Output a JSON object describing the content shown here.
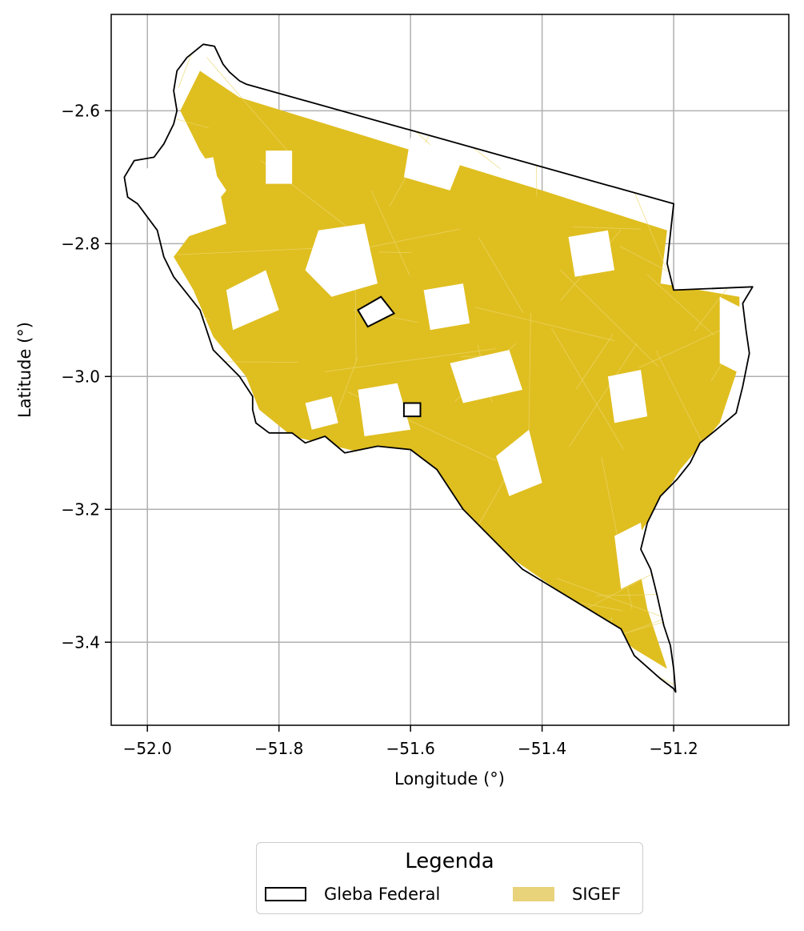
{
  "map": {
    "xlabel": "Longitude (°)",
    "ylabel": "Latitude (°)",
    "xlim": [
      -52.055,
      -51.025
    ],
    "ylim": [
      -3.525,
      -2.455
    ],
    "x_ticks": [
      -52.0,
      -51.8,
      -51.6,
      -51.4,
      -51.2
    ],
    "x_tick_labels": [
      "−52.0",
      "−51.8",
      "−51.6",
      "−51.4",
      "−51.2"
    ],
    "y_ticks": [
      -2.6,
      -2.8,
      -3.0,
      -3.2,
      -3.4
    ],
    "y_tick_labels": [
      "−2.6",
      "−2.8",
      "−3.0",
      "−3.2",
      "−3.4"
    ],
    "grid": true,
    "fill_color": "#dfbe20",
    "outline_color": "#000000",
    "boundary_outline": [
      [
        -51.915,
        -2.5
      ],
      [
        -51.898,
        -2.503
      ],
      [
        -51.885,
        -2.53
      ],
      [
        -51.875,
        -2.542
      ],
      [
        -51.86,
        -2.555
      ],
      [
        -51.85,
        -2.56
      ],
      [
        -51.2,
        -2.74
      ],
      [
        -51.21,
        -2.83
      ],
      [
        -51.2,
        -2.87
      ],
      [
        -51.08,
        -2.865
      ],
      [
        -51.095,
        -2.89
      ],
      [
        -51.09,
        -2.93
      ],
      [
        -51.085,
        -2.965
      ],
      [
        -51.095,
        -3.015
      ],
      [
        -51.105,
        -3.055
      ],
      [
        -51.135,
        -3.08
      ],
      [
        -51.16,
        -3.1
      ],
      [
        -51.175,
        -3.13
      ],
      [
        -51.195,
        -3.155
      ],
      [
        -51.22,
        -3.18
      ],
      [
        -51.24,
        -3.22
      ],
      [
        -51.25,
        -3.26
      ],
      [
        -51.235,
        -3.29
      ],
      [
        -51.225,
        -3.33
      ],
      [
        -51.215,
        -3.375
      ],
      [
        -51.205,
        -3.405
      ],
      [
        -51.2,
        -3.44
      ],
      [
        -51.197,
        -3.475
      ],
      [
        -51.2,
        -3.47
      ],
      [
        -51.22,
        -3.455
      ],
      [
        -51.26,
        -3.42
      ],
      [
        -51.28,
        -3.38
      ],
      [
        -51.33,
        -3.35
      ],
      [
        -51.38,
        -3.32
      ],
      [
        -51.43,
        -3.29
      ],
      [
        -51.48,
        -3.24
      ],
      [
        -51.52,
        -3.2
      ],
      [
        -51.56,
        -3.14
      ],
      [
        -51.6,
        -3.11
      ],
      [
        -51.65,
        -3.105
      ],
      [
        -51.7,
        -3.115
      ],
      [
        -51.73,
        -3.09
      ],
      [
        -51.76,
        -3.1
      ],
      [
        -51.78,
        -3.085
      ],
      [
        -51.815,
        -3.085
      ],
      [
        -51.835,
        -3.07
      ],
      [
        -51.84,
        -3.05
      ],
      [
        -51.84,
        -3.03
      ],
      [
        -51.86,
        -3.0
      ],
      [
        -51.9,
        -2.96
      ],
      [
        -51.92,
        -2.9
      ],
      [
        -51.96,
        -2.85
      ],
      [
        -51.975,
        -2.82
      ],
      [
        -51.985,
        -2.78
      ],
      [
        -52.015,
        -2.74
      ],
      [
        -52.03,
        -2.73
      ],
      [
        -52.035,
        -2.7
      ],
      [
        -52.02,
        -2.675
      ],
      [
        -51.99,
        -2.67
      ],
      [
        -51.975,
        -2.65
      ],
      [
        -51.96,
        -2.62
      ],
      [
        -51.955,
        -2.6
      ],
      [
        -51.96,
        -2.57
      ],
      [
        -51.955,
        -2.54
      ],
      [
        -51.94,
        -2.52
      ]
    ],
    "sigef_core": [
      [
        -51.92,
        -2.54
      ],
      [
        -51.86,
        -2.58
      ],
      [
        -51.4,
        -2.72
      ],
      [
        -51.21,
        -2.78
      ],
      [
        -51.22,
        -2.86
      ],
      [
        -51.1,
        -2.88
      ],
      [
        -51.1,
        -2.98
      ],
      [
        -51.13,
        -3.07
      ],
      [
        -51.19,
        -3.14
      ],
      [
        -51.26,
        -3.25
      ],
      [
        -51.24,
        -3.35
      ],
      [
        -51.21,
        -3.44
      ],
      [
        -51.26,
        -3.41
      ],
      [
        -51.35,
        -3.34
      ],
      [
        -51.48,
        -3.25
      ],
      [
        -51.56,
        -3.15
      ],
      [
        -51.65,
        -3.12
      ],
      [
        -51.78,
        -3.09
      ],
      [
        -51.83,
        -3.05
      ],
      [
        -51.85,
        -3.0
      ],
      [
        -51.9,
        -2.94
      ],
      [
        -51.93,
        -2.87
      ],
      [
        -51.96,
        -2.82
      ],
      [
        -51.93,
        -2.78
      ],
      [
        -51.88,
        -2.72
      ],
      [
        -51.92,
        -2.66
      ],
      [
        -51.95,
        -2.6
      ]
    ],
    "gaps": [
      [
        [
          -52.02,
          -2.69
        ],
        [
          -51.9,
          -2.67
        ],
        [
          -51.88,
          -2.77
        ],
        [
          -51.97,
          -2.8
        ],
        [
          -52.02,
          -2.74
        ]
      ],
      [
        [
          -51.74,
          -2.78
        ],
        [
          -51.67,
          -2.77
        ],
        [
          -51.65,
          -2.86
        ],
        [
          -51.72,
          -2.88
        ],
        [
          -51.76,
          -2.84
        ]
      ],
      [
        [
          -51.6,
          -2.64
        ],
        [
          -51.52,
          -2.67
        ],
        [
          -51.54,
          -2.72
        ],
        [
          -51.61,
          -2.7
        ]
      ],
      [
        [
          -51.88,
          -2.87
        ],
        [
          -51.82,
          -2.84
        ],
        [
          -51.8,
          -2.9
        ],
        [
          -51.87,
          -2.93
        ]
      ],
      [
        [
          -51.13,
          -2.88
        ],
        [
          -51.09,
          -2.9
        ],
        [
          -51.09,
          -3.0
        ],
        [
          -51.13,
          -2.98
        ]
      ],
      [
        [
          -51.68,
          -3.02
        ],
        [
          -51.62,
          -3.01
        ],
        [
          -51.6,
          -3.08
        ],
        [
          -51.67,
          -3.09
        ]
      ],
      [
        [
          -51.54,
          -2.98
        ],
        [
          -51.45,
          -2.96
        ],
        [
          -51.43,
          -3.02
        ],
        [
          -51.52,
          -3.04
        ]
      ],
      [
        [
          -51.47,
          -3.12
        ],
        [
          -51.42,
          -3.08
        ],
        [
          -51.4,
          -3.16
        ],
        [
          -51.45,
          -3.18
        ]
      ],
      [
        [
          -51.3,
          -3.0
        ],
        [
          -51.25,
          -2.99
        ],
        [
          -51.24,
          -3.06
        ],
        [
          -51.29,
          -3.07
        ]
      ],
      [
        [
          -51.58,
          -2.87
        ],
        [
          -51.52,
          -2.86
        ],
        [
          -51.51,
          -2.92
        ],
        [
          -51.57,
          -2.93
        ]
      ],
      [
        [
          -51.36,
          -2.79
        ],
        [
          -51.3,
          -2.78
        ],
        [
          -51.29,
          -2.84
        ],
        [
          -51.35,
          -2.85
        ]
      ],
      [
        [
          -51.76,
          -3.04
        ],
        [
          -51.72,
          -3.03
        ],
        [
          -51.71,
          -3.07
        ],
        [
          -51.75,
          -3.08
        ]
      ],
      [
        [
          -51.29,
          -3.24
        ],
        [
          -51.25,
          -3.22
        ],
        [
          -51.24,
          -3.3
        ],
        [
          -51.28,
          -3.32
        ]
      ],
      [
        [
          -51.82,
          -2.66
        ],
        [
          -51.78,
          -2.66
        ],
        [
          -51.78,
          -2.71
        ],
        [
          -51.82,
          -2.71
        ]
      ]
    ],
    "glebas": [
      [
        [
          -51.68,
          -2.9
        ],
        [
          -51.645,
          -2.88
        ],
        [
          -51.625,
          -2.905
        ],
        [
          -51.665,
          -2.925
        ]
      ],
      [
        [
          -51.61,
          -3.04
        ],
        [
          -51.585,
          -3.04
        ],
        [
          -51.585,
          -3.06
        ],
        [
          -51.61,
          -3.06
        ]
      ]
    ]
  },
  "legend": {
    "title": "Legenda",
    "items": [
      {
        "label": "Gleba Federal",
        "style": "outline",
        "color": "#000000"
      },
      {
        "label": "SIGEF",
        "style": "fill",
        "color": "#e8d27a"
      }
    ]
  }
}
